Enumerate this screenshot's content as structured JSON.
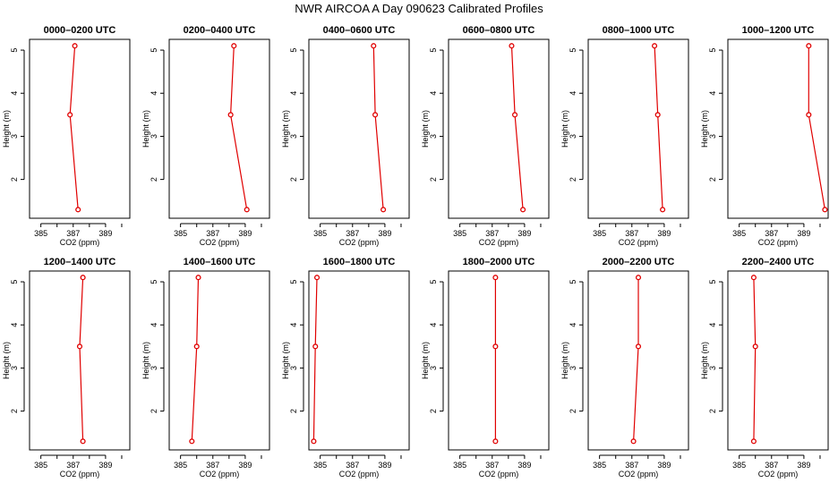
{
  "figure_title": "NWR AIRCOA A  Day 090623  Calibrated Profiles",
  "chart_data": [
    {
      "type": "line",
      "title": "0000–0200 UTC",
      "xlabel": "CO2 (ppm)",
      "ylabel": "Height (m)",
      "xlim": [
        384.3,
        390.5
      ],
      "ylim": [
        1.1,
        5.25
      ],
      "xticks": [
        385,
        387,
        389
      ],
      "yticks": [
        2,
        3,
        4,
        5
      ],
      "x": [
        387.1,
        386.8,
        387.3
      ],
      "y": [
        5.1,
        3.5,
        1.3
      ]
    },
    {
      "type": "line",
      "title": "0200–0400 UTC",
      "xlabel": "CO2 (ppm)",
      "ylabel": "Height (m)",
      "xlim": [
        384.3,
        390.5
      ],
      "ylim": [
        1.1,
        5.25
      ],
      "xticks": [
        385,
        387,
        389
      ],
      "yticks": [
        2,
        3,
        4,
        5
      ],
      "x": [
        388.3,
        388.1,
        389.1
      ],
      "y": [
        5.1,
        3.5,
        1.3
      ]
    },
    {
      "type": "line",
      "title": "0400–0600 UTC",
      "xlabel": "CO2 (ppm)",
      "ylabel": "Height (m)",
      "xlim": [
        384.3,
        390.5
      ],
      "ylim": [
        1.1,
        5.25
      ],
      "xticks": [
        385,
        387,
        389
      ],
      "yticks": [
        2,
        3,
        4,
        5
      ],
      "x": [
        388.3,
        388.4,
        388.9
      ],
      "y": [
        5.1,
        3.5,
        1.3
      ]
    },
    {
      "type": "line",
      "title": "0600–0800 UTC",
      "xlabel": "CO2 (ppm)",
      "ylabel": "Height (m)",
      "xlim": [
        384.3,
        390.5
      ],
      "ylim": [
        1.1,
        5.25
      ],
      "xticks": [
        385,
        387,
        389
      ],
      "yticks": [
        2,
        3,
        4,
        5
      ],
      "x": [
        388.2,
        388.4,
        388.9
      ],
      "y": [
        5.1,
        3.5,
        1.3
      ]
    },
    {
      "type": "line",
      "title": "0800–1000 UTC",
      "xlabel": "CO2 (ppm)",
      "ylabel": "Height (m)",
      "xlim": [
        384.3,
        390.5
      ],
      "ylim": [
        1.1,
        5.25
      ],
      "xticks": [
        385,
        387,
        389
      ],
      "yticks": [
        2,
        3,
        4,
        5
      ],
      "x": [
        388.4,
        388.6,
        388.9
      ],
      "y": [
        5.1,
        3.5,
        1.3
      ]
    },
    {
      "type": "line",
      "title": "1000–1200 UTC",
      "xlabel": "CO2 (ppm)",
      "ylabel": "Height (m)",
      "xlim": [
        384.3,
        390.5
      ],
      "ylim": [
        1.1,
        5.25
      ],
      "xticks": [
        385,
        387,
        389
      ],
      "yticks": [
        2,
        3,
        4,
        5
      ],
      "x": [
        389.3,
        389.3,
        390.3
      ],
      "y": [
        5.1,
        3.5,
        1.3
      ]
    },
    {
      "type": "line",
      "title": "1200–1400 UTC",
      "xlabel": "CO2 (ppm)",
      "ylabel": "Height (m)",
      "xlim": [
        384.3,
        390.5
      ],
      "ylim": [
        1.1,
        5.25
      ],
      "xticks": [
        385,
        387,
        389
      ],
      "yticks": [
        2,
        3,
        4,
        5
      ],
      "x": [
        387.6,
        387.4,
        387.6
      ],
      "y": [
        5.1,
        3.5,
        1.3
      ]
    },
    {
      "type": "line",
      "title": "1400–1600 UTC",
      "xlabel": "CO2 (ppm)",
      "ylabel": "Height (m)",
      "xlim": [
        384.3,
        390.5
      ],
      "ylim": [
        1.1,
        5.25
      ],
      "xticks": [
        385,
        387,
        389
      ],
      "yticks": [
        2,
        3,
        4,
        5
      ],
      "x": [
        386.1,
        386.0,
        385.7
      ],
      "y": [
        5.1,
        3.5,
        1.3
      ]
    },
    {
      "type": "line",
      "title": "1600–1800 UTC",
      "xlabel": "CO2 (ppm)",
      "ylabel": "Height (m)",
      "xlim": [
        384.3,
        390.5
      ],
      "ylim": [
        1.1,
        5.25
      ],
      "xticks": [
        385,
        387,
        389
      ],
      "yticks": [
        2,
        3,
        4,
        5
      ],
      "x": [
        384.8,
        384.7,
        384.6
      ],
      "y": [
        5.1,
        3.5,
        1.3
      ]
    },
    {
      "type": "line",
      "title": "1800–2000 UTC",
      "xlabel": "CO2 (ppm)",
      "ylabel": "Height (m)",
      "xlim": [
        384.3,
        390.5
      ],
      "ylim": [
        1.1,
        5.25
      ],
      "xticks": [
        385,
        387,
        389
      ],
      "yticks": [
        2,
        3,
        4,
        5
      ],
      "x": [
        387.2,
        387.2,
        387.2
      ],
      "y": [
        5.1,
        3.5,
        1.3
      ]
    },
    {
      "type": "line",
      "title": "2000–2200 UTC",
      "xlabel": "CO2 (ppm)",
      "ylabel": "Height (m)",
      "xlim": [
        384.3,
        390.5
      ],
      "ylim": [
        1.1,
        5.25
      ],
      "xticks": [
        385,
        387,
        389
      ],
      "yticks": [
        2,
        3,
        4,
        5
      ],
      "x": [
        387.4,
        387.4,
        387.1
      ],
      "y": [
        5.1,
        3.5,
        1.3
      ]
    },
    {
      "type": "line",
      "title": "2200–2400 UTC",
      "xlabel": "CO2 (ppm)",
      "ylabel": "Height (m)",
      "xlim": [
        384.3,
        390.5
      ],
      "ylim": [
        1.1,
        5.25
      ],
      "xticks": [
        385,
        387,
        389
      ],
      "yticks": [
        2,
        3,
        4,
        5
      ],
      "x": [
        385.9,
        386.0,
        385.9
      ],
      "y": [
        5.1,
        3.5,
        1.3
      ]
    }
  ],
  "colors": {
    "series": "#e00000",
    "axes": "#000000",
    "marker_fill": "#ffffff"
  }
}
